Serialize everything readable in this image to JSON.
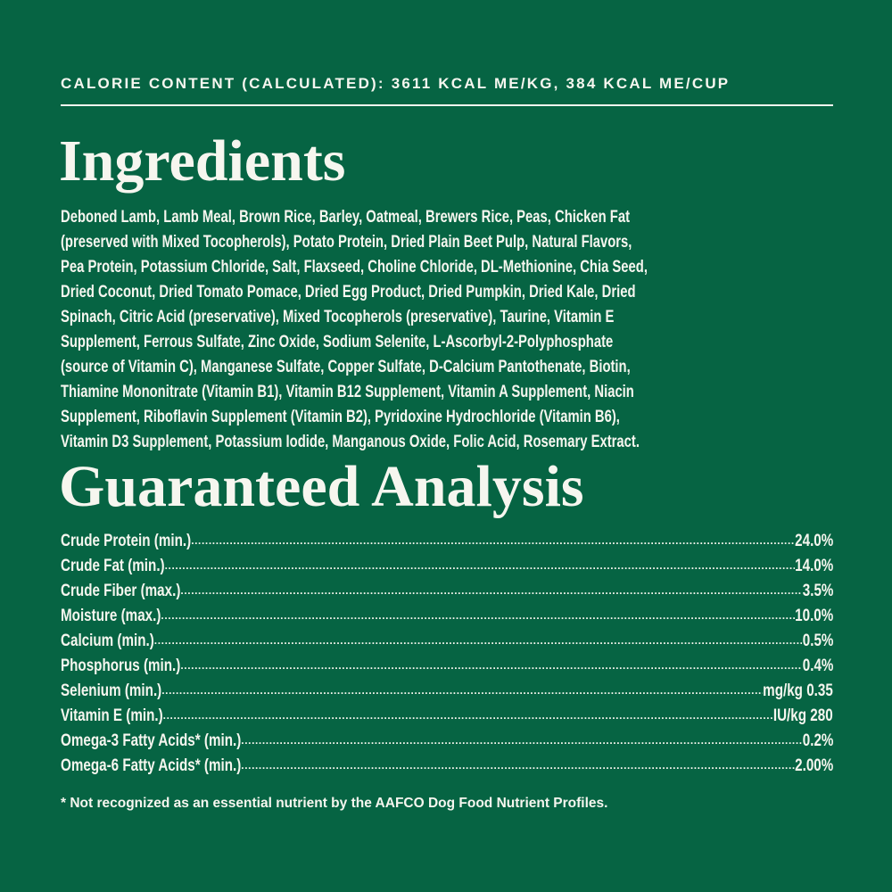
{
  "calorie_content": "CALORIE CONTENT (CALCULATED): 3611 KCAL ME/KG, 384 KCAL ME/CUP",
  "ingredients": {
    "title": "Ingredients",
    "lines": [
      "Deboned Lamb, Lamb Meal, Brown Rice, Barley, Oatmeal, Brewers Rice, Peas, Chicken Fat",
      "(preserved with Mixed Tocopherols), Potato Protein, Dried Plain Beet Pulp, Natural Flavors,",
      "Pea Protein, Potassium Chloride, Salt, Flaxseed, Choline Chloride, DL-Methionine, Chia Seed,",
      "Dried Coconut, Dried Tomato Pomace, Dried Egg Product, Dried Pumpkin, Dried Kale, Dried",
      "Spinach, Citric Acid (preservative), Mixed Tocopherols (preservative), Taurine, Vitamin E",
      "Supplement, Ferrous Sulfate, Zinc Oxide, Sodium Selenite, L-Ascorbyl-2-Polyphosphate",
      "(source of Vitamin C), Manganese Sulfate, Copper Sulfate, D-Calcium Pantothenate, Biotin,",
      "Thiamine Mononitrate (Vitamin B1), Vitamin B12 Supplement, Vitamin A Supplement, Niacin",
      "Supplement, Riboflavin Supplement (Vitamin B2), Pyridoxine Hydrochloride (Vitamin B6),",
      "Vitamin D3 Supplement, Potassium Iodide, Manganous Oxide, Folic Acid, Rosemary Extract."
    ]
  },
  "analysis": {
    "title": "Guaranteed Analysis",
    "rows": [
      {
        "label": "Crude Protein (min.)",
        "value": "24.0%"
      },
      {
        "label": "Crude Fat (min.)",
        "value": "14.0%"
      },
      {
        "label": "Crude Fiber (max.)",
        "value": "3.5%"
      },
      {
        "label": "Moisture (max.)",
        "value": "10.0%"
      },
      {
        "label": "Calcium (min.)",
        "value": "0.5%"
      },
      {
        "label": "Phosphorus (min.)",
        "value": "0.4%"
      },
      {
        "label": "Selenium (min.)",
        "value": "0.35 mg/kg"
      },
      {
        "label": "Vitamin E (min.)",
        "value": "280 IU/kg"
      },
      {
        "label": "Omega-3 Fatty Acids* (min.)",
        "value": "0.2%"
      },
      {
        "label": "Omega-6 Fatty Acids* (min.)",
        "value": "2.00%"
      }
    ]
  },
  "footnote": "* Not recognized as an essential nutrient by the AAFCO Dog Food Nutrient Profiles.",
  "colors": {
    "background": "#066443",
    "text": "#f6f6ef"
  }
}
